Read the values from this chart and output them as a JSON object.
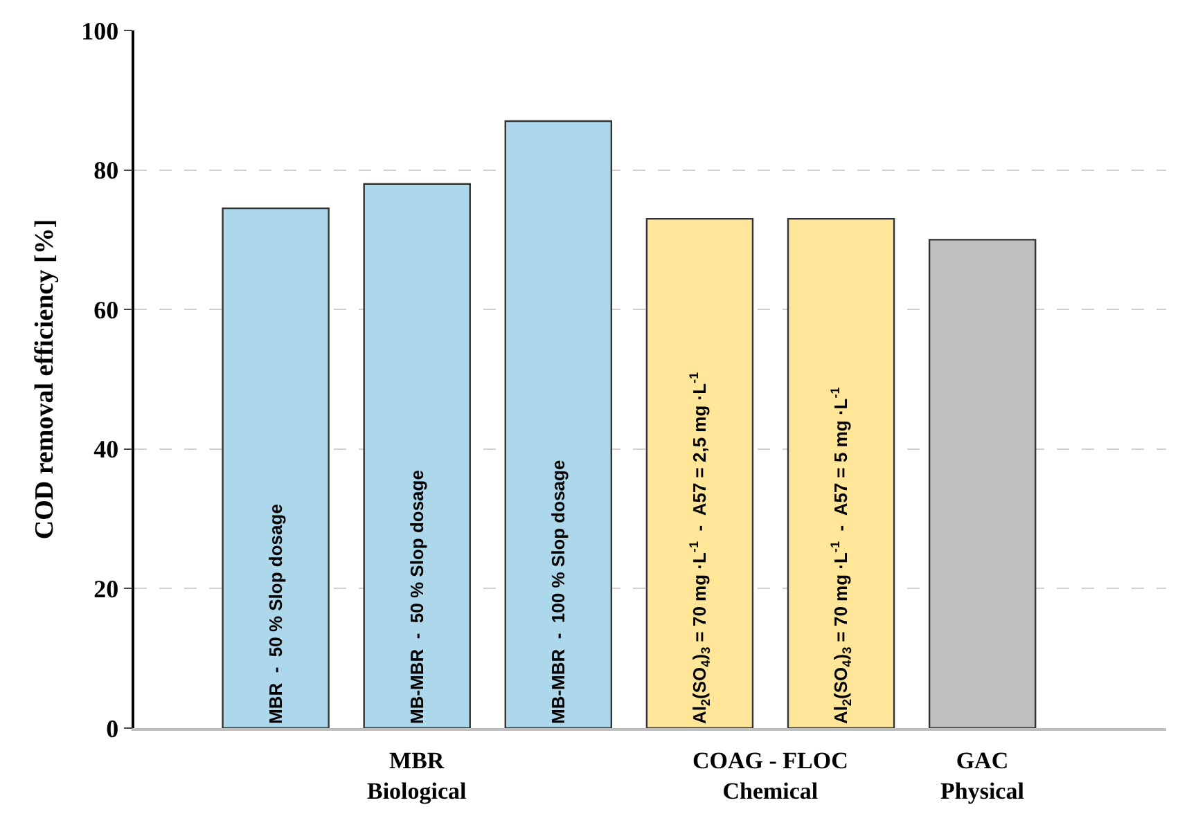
{
  "chart_data": {
    "type": "bar",
    "ylabel": "COD removal efficiency [%]",
    "categories": [
      "MBR  -  50 % Slop dosage",
      "MB-MBR  -  50 % Slop dosage",
      "MB-MBR  -  100 % Slop dosage",
      "Al$_{2}$(SO$_{4}$)$_{3}$ = 70 mg ·L$^{-1}$  -  A57 = 2,5 mg ·L$^{-1}$",
      "Al$_{2}$(SO$_{4}$)$_{3}$ = 70 mg ·L$^{-1}$  -  A57 = 5 mg ·L$^{-1}$",
      null
    ],
    "values": [
      74.5,
      78,
      87,
      73,
      73,
      70
    ],
    "colors": [
      "#add8eb",
      "#add8eb",
      "#add8eb",
      "#ffe699",
      "#ffe699",
      "#bfbfbf"
    ],
    "annotations": [
      "MBR\nBiological",
      "COAG - FLOC\nChemical",
      "GAC\nPhysical"
    ],
    "ylim": [
      0,
      100
    ],
    "yticks": [
      0,
      20,
      40,
      60,
      80,
      100
    ],
    "grid": "y"
  }
}
